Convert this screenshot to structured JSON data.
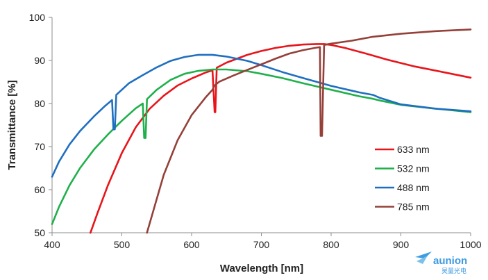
{
  "chart_data": {
    "type": "line",
    "xlabel": "Wavelength [nm]",
    "ylabel": "Transmittance [%]",
    "xlim": [
      400,
      1000
    ],
    "ylim": [
      50,
      100
    ],
    "xticks": [
      400,
      500,
      600,
      700,
      800,
      900,
      1000
    ],
    "yticks": [
      50,
      60,
      70,
      80,
      90,
      100
    ],
    "grid": false,
    "legend_position": "right",
    "series": [
      {
        "name": "633 nm",
        "color": "#e8141a",
        "x": [
          455,
          465,
          480,
          500,
          520,
          540,
          560,
          580,
          600,
          620,
          630,
          633,
          634,
          636,
          650,
          680,
          700,
          720,
          740,
          760,
          780,
          790,
          800,
          820,
          850,
          880,
          920,
          960,
          1000
        ],
        "y": [
          50,
          54.5,
          61,
          68.5,
          74.5,
          78.8,
          81.8,
          84.2,
          85.8,
          87.2,
          87.7,
          78,
          78,
          88.3,
          89.5,
          91.3,
          92.2,
          92.9,
          93.4,
          93.7,
          93.8,
          93.8,
          93.6,
          92.9,
          91.6,
          90.2,
          88.6,
          87.3,
          86
        ]
      },
      {
        "name": "532 nm",
        "color": "#1fb04b",
        "x": [
          400,
          410,
          425,
          440,
          460,
          480,
          500,
          520,
          530,
          532,
          534,
          536,
          550,
          570,
          590,
          610,
          630,
          650,
          680,
          700,
          730,
          760,
          800,
          840,
          860,
          870,
          900,
          950,
          1000
        ],
        "y": [
          52,
          56,
          61,
          65,
          69.3,
          72.8,
          76,
          78.9,
          80,
          72,
          72,
          81,
          83.2,
          85.5,
          86.9,
          87.6,
          87.9,
          87.9,
          87.5,
          86.9,
          85.9,
          84.7,
          83.2,
          81.7,
          81.1,
          80.7,
          79.7,
          78.8,
          78
        ]
      },
      {
        "name": "488 nm",
        "color": "#1f6fc0",
        "x": [
          400,
          410,
          425,
          440,
          460,
          475,
          486,
          488,
          490,
          492,
          510,
          530,
          550,
          570,
          590,
          610,
          630,
          650,
          680,
          700,
          730,
          760,
          800,
          840,
          860,
          870,
          900,
          950,
          1000
        ],
        "y": [
          63,
          66.5,
          70.5,
          73.6,
          77,
          79.3,
          80.8,
          74,
          74,
          82,
          84.7,
          86.6,
          88.4,
          89.9,
          90.8,
          91.3,
          91.3,
          90.9,
          89.9,
          88.9,
          87.3,
          85.9,
          84.1,
          82.6,
          82,
          81.3,
          79.8,
          78.8,
          78.2
        ]
      },
      {
        "name": "785 nm",
        "color": "#944039",
        "x": [
          536,
          545,
          560,
          580,
          600,
          620,
          630,
          633,
          640,
          660,
          680,
          700,
          720,
          740,
          760,
          780,
          784,
          785,
          787,
          790,
          800,
          830,
          860,
          900,
          950,
          1000
        ],
        "y": [
          50,
          55,
          63.4,
          71.5,
          77.3,
          81.4,
          83.2,
          84.2,
          85.1,
          86.5,
          87.8,
          89.1,
          90.4,
          91.6,
          92.4,
          93,
          93.1,
          72.5,
          72.5,
          93.6,
          93.9,
          94.6,
          95.5,
          96.2,
          96.8,
          97.2
        ]
      }
    ]
  },
  "brand": {
    "name": "aunion",
    "subtitle": "昊量光电",
    "color": "#3d9be0"
  }
}
